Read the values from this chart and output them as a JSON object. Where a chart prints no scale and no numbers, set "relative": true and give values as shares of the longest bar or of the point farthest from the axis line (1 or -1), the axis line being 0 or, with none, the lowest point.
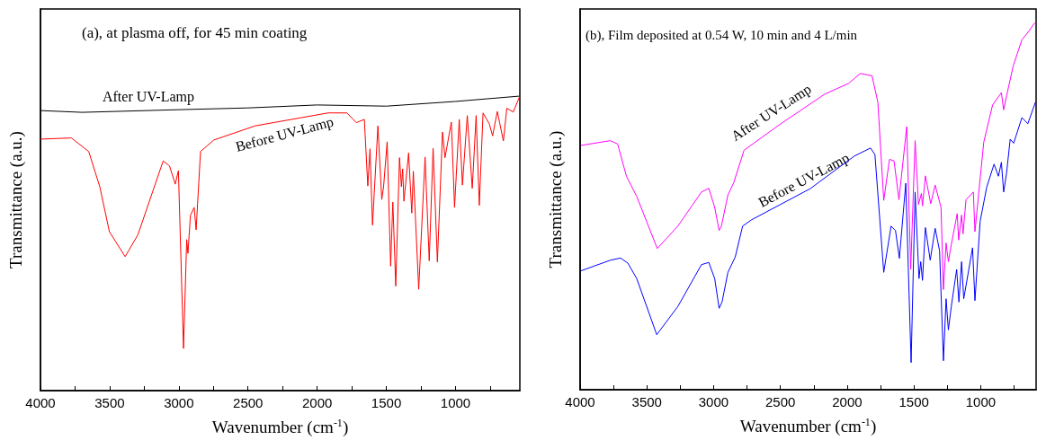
{
  "chart_data": [
    {
      "type": "line",
      "relative": true,
      "title": "(a), at plasma off, for 45 min coating",
      "xlabel": "Wavenumber (cm$^{-1}$)",
      "ylabel": "Transmittance (a.u.)",
      "xlim": [
        4000,
        535
      ],
      "xticks": [
        4000,
        {
          "value": 3750,
          "label": null
        },
        3500,
        {
          "value": 3250,
          "label": null
        },
        3000,
        {
          "value": 2750,
          "label": null
        },
        2500,
        {
          "value": 2250,
          "label": null
        },
        2000,
        {
          "value": 1750,
          "label": null
        },
        1500,
        {
          "value": 1250,
          "label": null
        },
        1000,
        {
          "value": 750,
          "label": null
        }
      ],
      "grid": false,
      "legend": false,
      "marker": "none",
      "line_style": "solid",
      "series": [
        {
          "name": "After UV-Lamp",
          "color": "#000000",
          "x": [
            4000,
            3700,
            3000,
            2500,
            2000,
            1500,
            1000,
            540
          ],
          "values": [
            0.951,
            0.945,
            0.954,
            0.96,
            0.97,
            0.966,
            0.982,
            1.0
          ]
        },
        {
          "name": "Before UV-Lamp",
          "color": "#ff0000",
          "x": [
            4000,
            3777,
            3651,
            3571,
            3502,
            3388,
            3296,
            3113,
            3067,
            3026,
            3003,
            2966,
            2943,
            2934,
            2916,
            2889,
            2875,
            2843,
            2747,
            2449,
            1922,
            1785,
            1717,
            1659,
            1634,
            1618,
            1600,
            1561,
            1533,
            1520,
            1494,
            1469,
            1453,
            1432,
            1405,
            1391,
            1382,
            1373,
            1339,
            1316,
            1305,
            1266,
            1220,
            1190,
            1162,
            1131,
            1094,
            1076,
            1030,
            1007,
            973,
            950,
            915,
            879,
            851,
            828,
            801,
            755,
            732,
            698,
            654,
            629,
            583,
            538
          ],
          "values": [
            0.854,
            0.858,
            0.812,
            0.692,
            0.54,
            0.455,
            0.529,
            0.78,
            0.763,
            0.701,
            0.747,
            0.143,
            0.513,
            0.466,
            0.595,
            0.622,
            0.546,
            0.812,
            0.851,
            0.899,
            0.943,
            0.943,
            0.91,
            0.921,
            0.695,
            0.821,
            0.562,
            0.899,
            0.649,
            0.692,
            0.845,
            0.423,
            0.64,
            0.355,
            0.791,
            0.692,
            0.753,
            0.643,
            0.807,
            0.603,
            0.745,
            0.344,
            0.793,
            0.441,
            0.823,
            0.437,
            0.878,
            0.791,
            0.912,
            0.622,
            0.921,
            0.698,
            0.934,
            0.687,
            0.934,
            0.629,
            0.943,
            0.905,
            0.865,
            0.948,
            0.848,
            0.959,
            0.946,
            0.997
          ]
        }
      ]
    },
    {
      "type": "line",
      "relative": true,
      "title": "(b), Film deposited at 0.54 W, 10 min and 4 L/min",
      "xlabel": "Wavenumber (cm$^{-1}$)",
      "ylabel": "Transmittance (a.u.)",
      "xlim": [
        4000,
        585
      ],
      "xticks": [
        4000,
        {
          "value": 3750,
          "label": null
        },
        3500,
        {
          "value": 3250,
          "label": null
        },
        3000,
        {
          "value": 2750,
          "label": null
        },
        2500,
        {
          "value": 2250,
          "label": null
        },
        2000,
        {
          "value": 1750,
          "label": null
        },
        1500,
        {
          "value": 1250,
          "label": null
        },
        1000,
        {
          "value": 750,
          "label": null
        }
      ],
      "grid": false,
      "legend": false,
      "marker": "none",
      "line_style": "solid",
      "series": [
        {
          "name": "After UV-Lamp",
          "color": "#ff00ff",
          "x": [
            3994,
            3774,
            3719,
            3653,
            3576,
            3422,
            3268,
            3091,
            3036,
            2992,
            2959,
            2942,
            2893,
            2849,
            2772,
            2497,
            2167,
            1990,
            1902,
            1814,
            1770,
            1726,
            1683,
            1649,
            1612,
            1554,
            1524,
            1491,
            1466,
            1444,
            1436,
            1414,
            1374,
            1341,
            1297,
            1279,
            1259,
            1242,
            1220,
            1176,
            1165,
            1143,
            1132,
            1110,
            1055,
            1043,
            977,
            911,
            845,
            828,
            806,
            757,
            691,
            636,
            603,
            590
          ],
          "values": [
            0.666,
            0.679,
            0.67,
            0.582,
            0.527,
            0.385,
            0.446,
            0.539,
            0.549,
            0.497,
            0.434,
            0.446,
            0.531,
            0.565,
            0.653,
            0.725,
            0.806,
            0.835,
            0.862,
            0.856,
            0.784,
            0.516,
            0.628,
            0.624,
            0.518,
            0.717,
            0.328,
            0.679,
            0.505,
            0.535,
            0.501,
            0.583,
            0.507,
            0.558,
            0.497,
            0.273,
            0.4,
            0.349,
            0.396,
            0.48,
            0.408,
            0.476,
            0.425,
            0.518,
            0.539,
            0.431,
            0.675,
            0.776,
            0.81,
            0.763,
            0.801,
            0.882,
            0.954,
            0.979,
            0.997,
            1.0
          ]
        },
        {
          "name": "Before UV-Lamp",
          "color": "#0000ff",
          "x": [
            3994,
            3774,
            3697,
            3642,
            3576,
            3426,
            3268,
            3091,
            3036,
            2992,
            2959,
            2937,
            2893,
            2838,
            2783,
            2717,
            2277,
            1946,
            1825,
            1792,
            1726,
            1671,
            1638,
            1609,
            1561,
            1521,
            1491,
            1462,
            1449,
            1436,
            1414,
            1378,
            1341,
            1308,
            1279,
            1259,
            1242,
            1220,
            1180,
            1163,
            1143,
            1127,
            1061,
            1043,
            1004,
            955,
            900,
            867,
            845,
            828,
            806,
            779,
            753,
            691,
            647,
            590
          ],
          "values": [
            0.324,
            0.353,
            0.359,
            0.345,
            0.303,
            0.15,
            0.227,
            0.341,
            0.347,
            0.303,
            0.222,
            0.239,
            0.32,
            0.362,
            0.446,
            0.463,
            0.548,
            0.637,
            0.659,
            0.641,
            0.32,
            0.446,
            0.434,
            0.358,
            0.563,
            0.074,
            0.539,
            0.303,
            0.349,
            0.298,
            0.442,
            0.353,
            0.44,
            0.379,
            0.079,
            0.248,
            0.163,
            0.227,
            0.328,
            0.239,
            0.349,
            0.248,
            0.387,
            0.243,
            0.459,
            0.552,
            0.615,
            0.582,
            0.62,
            0.539,
            0.591,
            0.683,
            0.672,
            0.742,
            0.725,
            0.784
          ]
        }
      ]
    }
  ]
}
